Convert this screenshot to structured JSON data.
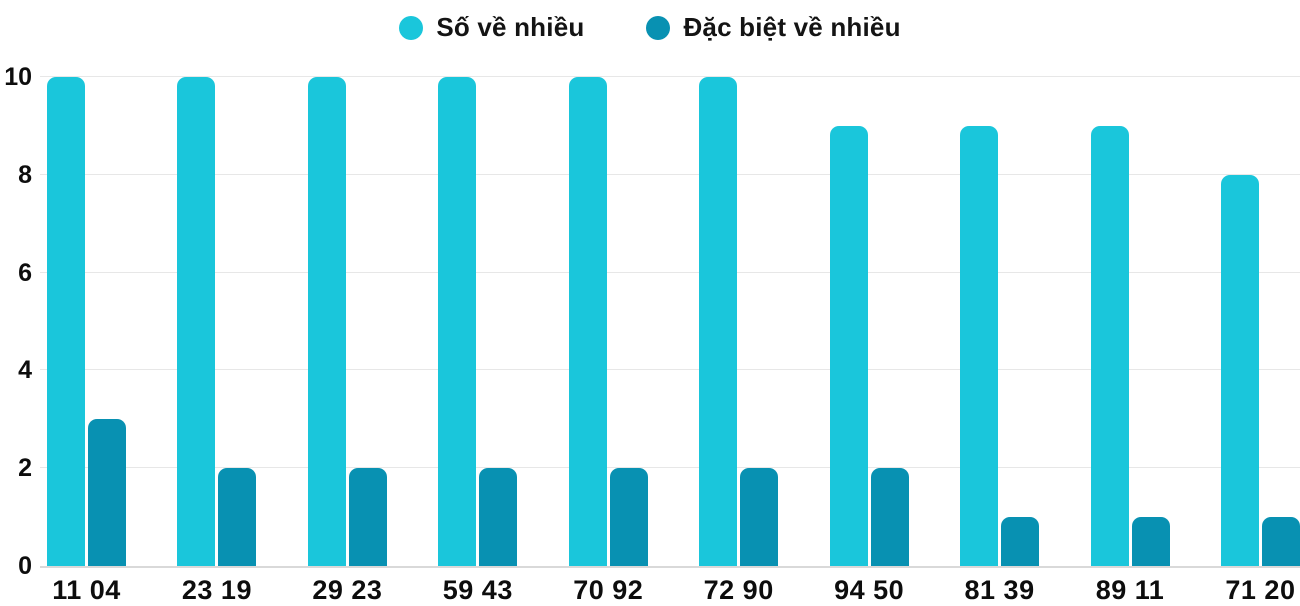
{
  "legend": {
    "items": [
      {
        "label": "Số về nhiều",
        "color": "#1AC6DB"
      },
      {
        "label": "Đặc biệt về nhiều",
        "color": "#0891B2"
      }
    ]
  },
  "chart_data": {
    "type": "bar",
    "title": "",
    "categories": [
      "11 04",
      "23 19",
      "29 23",
      "59 43",
      "70 92",
      "72 90",
      "94 50",
      "81 39",
      "89 11",
      "71 20"
    ],
    "series": [
      {
        "name": "Số về nhiều",
        "color": "#1AC6DB",
        "values": [
          10,
          10,
          10,
          10,
          10,
          10,
          9,
          9,
          9,
          8
        ]
      },
      {
        "name": "Đặc biệt về nhiều",
        "color": "#0891B2",
        "values": [
          3,
          2,
          2,
          2,
          2,
          2,
          2,
          1,
          1,
          1
        ]
      }
    ],
    "xlabel": "",
    "ylabel": "",
    "ylim": [
      0,
      10
    ],
    "yticks": [
      0,
      2,
      4,
      6,
      8,
      10
    ],
    "grid": true,
    "legend_position": "top-center",
    "colors": {
      "background": "#ffffff",
      "gridline": "#e7e7e7",
      "axis_line": "#d9d9d9",
      "text": "#0d0d0d"
    }
  }
}
